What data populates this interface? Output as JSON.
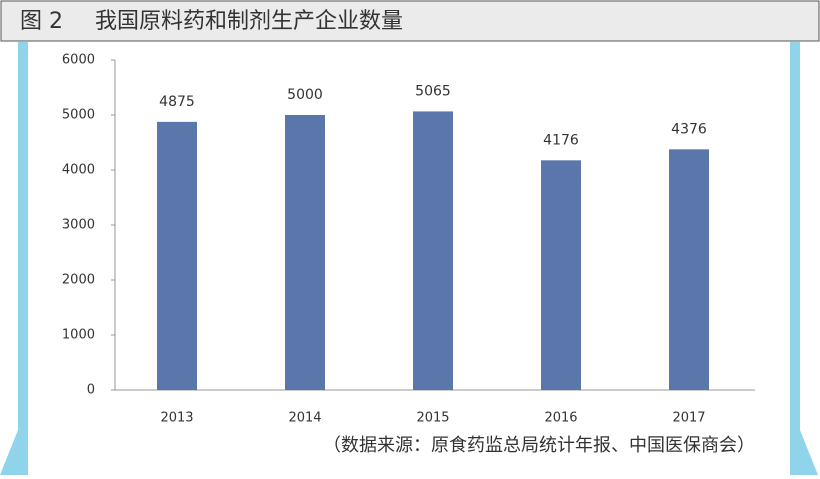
{
  "chart_data": {
    "type": "bar",
    "figure_label": "图 2",
    "title": "我国原料药和制剂生产企业数量",
    "categories": [
      "2013",
      "2014",
      "2015",
      "2016",
      "2017"
    ],
    "values": [
      4875,
      5000,
      5065,
      4176,
      4376
    ],
    "color": "#5b76ab",
    "ylim": [
      0,
      6000
    ],
    "yticks": [
      0,
      1000,
      2000,
      3000,
      4000,
      5000,
      6000
    ],
    "grid": false,
    "source": "（数据来源：原食药监总局统计年报、中国医保商会）"
  }
}
